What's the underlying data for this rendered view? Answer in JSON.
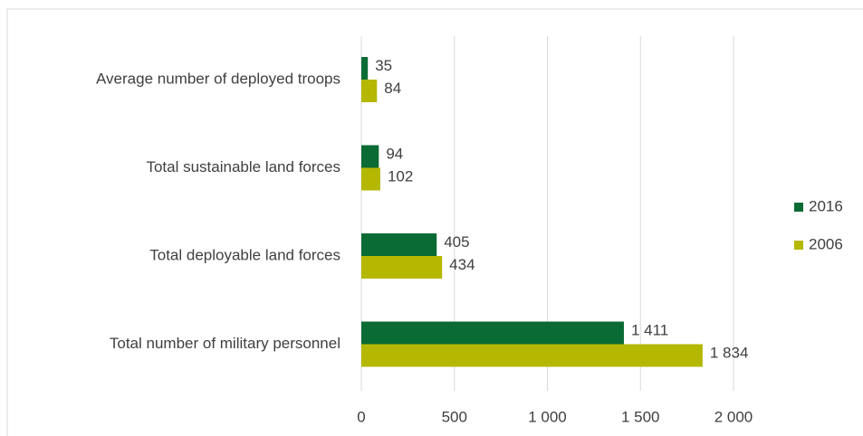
{
  "chart_data": {
    "type": "hbar",
    "categories": [
      "Average number of deployed troops",
      "Total sustainable land forces",
      "Total deployable land forces",
      "Total number of military personnel"
    ],
    "series": [
      {
        "name": "2016",
        "color": "#0b6b34",
        "values": [
          35,
          94,
          405,
          1411
        ],
        "value_labels": [
          "35",
          "94",
          "405",
          "1 411"
        ]
      },
      {
        "name": "2006",
        "color": "#b5b800",
        "values": [
          84,
          102,
          434,
          1834
        ],
        "value_labels": [
          "84",
          "102",
          "434",
          "1 834"
        ]
      }
    ],
    "xlim": [
      0,
      2000
    ],
    "xticks": [
      0,
      500,
      {
        "value": 1000,
        "label": "1 000"
      },
      {
        "value": 1500,
        "label": "1 500"
      },
      {
        "value": 2000,
        "label": "2 000"
      }
    ],
    "grid": true,
    "legend": "right"
  }
}
